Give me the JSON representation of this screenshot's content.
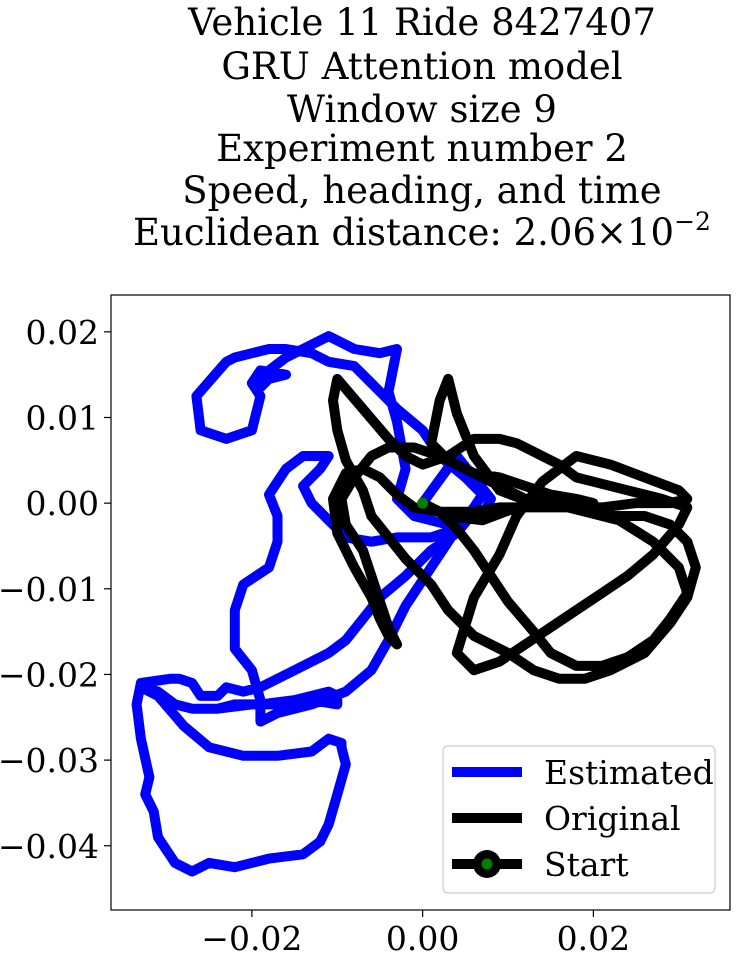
{
  "chart_data": {
    "type": "line",
    "title_lines": [
      "Vehicle 11 Ride 8427407",
      "GRU Attention model",
      "Window size 9",
      "Experiment number 2",
      "Speed, heading, and time"
    ],
    "metric": {
      "prefix": "Euclidean distance: ",
      "mantissa": "2.06",
      "times": "×",
      "base": "10",
      "exponent": "−2"
    },
    "xlim": [
      -0.0365,
      0.036
    ],
    "ylim": [
      -0.0475,
      0.0243
    ],
    "x_ticks": [
      -0.02,
      0.0,
      0.02
    ],
    "x_tick_labels": [
      "−0.02",
      "0.00",
      "0.02"
    ],
    "y_ticks": [
      0.02,
      0.01,
      0.0,
      -0.01,
      -0.02,
      -0.03,
      -0.04
    ],
    "y_tick_labels": [
      "0.02",
      "0.01",
      "0.00",
      "−0.01",
      "−0.02",
      "−0.03",
      "−0.04"
    ],
    "grid": false,
    "legend": {
      "placement": "lower-right",
      "entries": [
        "Estimated",
        "Original",
        "Start"
      ]
    },
    "colors": {
      "estimated": "#0000ff",
      "original": "#000000",
      "start": "#008000"
    },
    "series": [
      {
        "name": "Estimated",
        "x": [
          0.0,
          0.004,
          0.008,
          0.007,
          0.003,
          -0.001,
          -0.003,
          -0.002,
          -0.003,
          -0.004,
          -0.003,
          -0.005,
          -0.008,
          -0.011,
          -0.013,
          -0.016,
          -0.018,
          -0.019,
          -0.018,
          -0.016,
          -0.019,
          -0.02,
          -0.019,
          -0.02,
          -0.023,
          -0.026,
          -0.0265,
          -0.023,
          -0.022,
          -0.02,
          -0.018,
          -0.016,
          -0.013,
          -0.011,
          -0.008,
          -0.006,
          -0.003,
          0.0,
          0.002,
          0.005,
          0.007,
          0.006,
          0.004,
          0.001,
          -0.003,
          -0.006,
          -0.009,
          -0.011,
          -0.013,
          -0.014,
          -0.012,
          -0.011,
          -0.014,
          -0.016,
          -0.017,
          -0.018,
          -0.017,
          -0.017,
          -0.018,
          -0.021,
          -0.022,
          -0.022,
          -0.02,
          -0.019,
          -0.019,
          -0.017,
          -0.013,
          -0.009,
          -0.006,
          -0.004,
          -0.002,
          0.0,
          0.002,
          0.004,
          0.006,
          0.004,
          0.001,
          -0.002,
          -0.005,
          -0.007,
          -0.009,
          -0.011,
          -0.015,
          -0.019,
          -0.021,
          -0.023,
          -0.024,
          -0.026,
          -0.027,
          -0.0285,
          -0.0295,
          -0.033,
          -0.0335,
          -0.033,
          -0.032,
          -0.0325,
          -0.0315,
          -0.031,
          -0.029,
          -0.027,
          -0.025,
          -0.022,
          -0.018,
          -0.014,
          -0.012,
          -0.011,
          -0.01,
          -0.009,
          -0.0095,
          -0.0095,
          -0.011,
          -0.013,
          -0.017,
          -0.021,
          -0.025,
          -0.028,
          -0.031,
          -0.033,
          -0.031,
          -0.029,
          -0.027,
          -0.024,
          -0.02,
          -0.016,
          -0.013,
          -0.01,
          -0.01,
          -0.011,
          -0.015,
          -0.019,
          -0.022,
          -0.024
        ],
        "y": [
          0.0,
          0.0055,
          0.0005,
          -0.0015,
          -0.0025,
          -0.0015,
          0.0005,
          0.004,
          0.0095,
          0.013,
          0.018,
          0.0175,
          0.018,
          0.0195,
          0.0185,
          0.017,
          0.0155,
          0.0135,
          0.0145,
          0.015,
          0.0155,
          0.014,
          0.0125,
          0.0085,
          0.0075,
          0.0085,
          0.0125,
          0.0165,
          0.017,
          0.0175,
          0.018,
          0.018,
          0.0175,
          0.0165,
          0.016,
          0.014,
          0.011,
          0.0085,
          0.0055,
          0.003,
          0.001,
          -0.0005,
          -0.003,
          -0.004,
          -0.004,
          -0.0045,
          -0.004,
          -0.002,
          0.0,
          0.002,
          0.004,
          0.0055,
          0.0055,
          0.004,
          0.0025,
          0.001,
          -0.0015,
          -0.0045,
          -0.0075,
          -0.0095,
          -0.0125,
          -0.017,
          -0.0195,
          -0.023,
          -0.0255,
          -0.0245,
          -0.0235,
          -0.022,
          -0.0195,
          -0.016,
          -0.012,
          -0.009,
          -0.006,
          -0.003,
          -0.001,
          -0.0035,
          -0.0055,
          -0.0085,
          -0.011,
          -0.0135,
          -0.016,
          -0.0175,
          -0.0195,
          -0.0215,
          -0.022,
          -0.0215,
          -0.0225,
          -0.0225,
          -0.021,
          -0.0205,
          -0.0205,
          -0.021,
          -0.0235,
          -0.0275,
          -0.032,
          -0.034,
          -0.036,
          -0.039,
          -0.042,
          -0.043,
          -0.042,
          -0.0425,
          -0.0415,
          -0.041,
          -0.0395,
          -0.0375,
          -0.034,
          -0.0305,
          -0.0285,
          -0.028,
          -0.0275,
          -0.029,
          -0.0295,
          -0.0295,
          -0.0285,
          -0.026,
          -0.0225,
          -0.0215,
          -0.022,
          -0.0235,
          -0.024,
          -0.024,
          -0.0235,
          -0.0235,
          -0.023,
          -0.0235,
          -0.0225,
          -0.022,
          -0.023,
          -0.0235,
          -0.0235,
          -0.024
        ]
      },
      {
        "name": "Original",
        "x": [
          0.0,
          0.003,
          0.007,
          0.011,
          0.015,
          0.018,
          0.022,
          0.026,
          0.029,
          0.031,
          0.032,
          0.031,
          0.029,
          0.026,
          0.022,
          0.019,
          0.016,
          0.013,
          0.01,
          0.006,
          0.003,
          0.001,
          -0.002,
          -0.004,
          -0.006,
          -0.007,
          -0.009,
          -0.01,
          -0.0105,
          -0.01,
          -0.007,
          -0.004,
          -0.002,
          0.0,
          0.003,
          0.006,
          0.009,
          0.011,
          0.013,
          0.015,
          0.016,
          0.018,
          0.02,
          0.024,
          0.028,
          0.031,
          0.03,
          0.027,
          0.024,
          0.021,
          0.018,
          0.015,
          0.012,
          0.009,
          0.006,
          0.004,
          0.006,
          0.009,
          0.011,
          0.014,
          0.018,
          0.022,
          0.026,
          0.03,
          0.031,
          0.029,
          0.025,
          0.021,
          0.017,
          0.013,
          0.009,
          0.006,
          0.004,
          0.003,
          0.002,
          0.001,
          0.003,
          0.006,
          0.009,
          0.012,
          0.015,
          0.018,
          0.02,
          0.018,
          0.015,
          0.012,
          0.009,
          0.006,
          0.004,
          0.002,
          -0.001,
          -0.003,
          -0.005,
          -0.007,
          -0.009,
          -0.0105,
          -0.01,
          -0.008,
          -0.006,
          -0.005,
          -0.004,
          -0.003,
          -0.004,
          -0.005,
          -0.006,
          -0.007,
          -0.009,
          -0.0095,
          -0.008,
          -0.006,
          -0.004,
          -0.001,
          0.002,
          0.005,
          0.008,
          0.01,
          0.012,
          0.015,
          0.019,
          0.023,
          0.027,
          0.03,
          0.031,
          0.029,
          0.027,
          0.024,
          0.021,
          0.018,
          0.015,
          0.013,
          0.01,
          0.008,
          0.006,
          0.004,
          0.002,
          0.0
        ],
        "y": [
          0.0,
          -0.0015,
          -0.002,
          -0.0005,
          0.0,
          -0.0005,
          -0.0015,
          -0.0015,
          -0.0025,
          -0.0045,
          -0.0075,
          -0.011,
          -0.014,
          -0.0175,
          -0.0195,
          -0.0205,
          -0.0205,
          -0.0195,
          -0.0175,
          -0.0155,
          -0.0125,
          -0.0095,
          -0.0065,
          -0.004,
          -0.0015,
          0.0015,
          0.005,
          0.0085,
          0.012,
          0.0145,
          0.011,
          0.0075,
          0.0055,
          0.0045,
          0.0055,
          0.0075,
          0.0075,
          0.007,
          0.006,
          0.005,
          0.0045,
          0.003,
          0.0025,
          0.0015,
          0.0005,
          -0.0005,
          -0.0025,
          -0.006,
          -0.0085,
          -0.0105,
          -0.0125,
          -0.0145,
          -0.0165,
          -0.0185,
          -0.0195,
          -0.0175,
          -0.011,
          -0.006,
          -0.0015,
          0.0025,
          0.0055,
          0.0045,
          0.003,
          0.0015,
          0.0005,
          0.0,
          0.0,
          -0.0005,
          -0.0005,
          0.0,
          0.0015,
          0.0055,
          0.0105,
          0.0145,
          0.012,
          0.007,
          0.005,
          0.0035,
          0.003,
          0.002,
          0.001,
          0.0005,
          0.0,
          -0.0005,
          -0.0005,
          -0.0005,
          -0.0005,
          -0.001,
          -0.001,
          -0.001,
          -0.0005,
          0.001,
          0.003,
          0.004,
          0.0035,
          0.0005,
          -0.0035,
          -0.0075,
          -0.011,
          -0.0135,
          -0.0155,
          -0.0165,
          -0.0145,
          -0.0115,
          -0.0085,
          -0.0055,
          -0.0025,
          0.0005,
          0.003,
          0.0055,
          0.0065,
          0.0065,
          0.0055,
          0.004,
          0.0025,
          0.0015,
          0.0005,
          0.0,
          -0.001,
          -0.002,
          -0.0045,
          -0.0075,
          -0.0105,
          -0.0135,
          -0.016,
          -0.018,
          -0.019,
          -0.019,
          -0.0175,
          -0.015,
          -0.0115,
          -0.0085,
          -0.0055,
          -0.003,
          -0.001,
          0.0
        ]
      },
      {
        "name": "Start",
        "x": [
          0.0
        ],
        "y": [
          0.0
        ]
      }
    ]
  }
}
